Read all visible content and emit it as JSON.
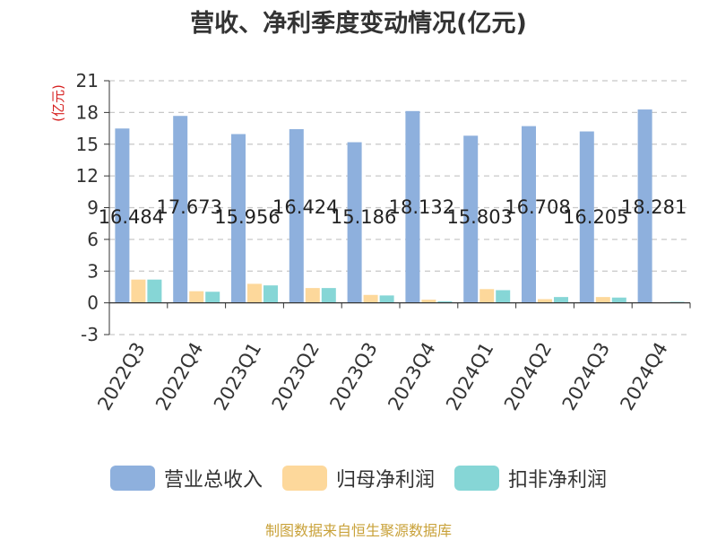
{
  "chart_data": {
    "type": "bar",
    "title": "营收、净利季度变动情况(亿元)",
    "ylabel": "(亿元)",
    "xlabel": "",
    "ylim": [
      -3,
      21
    ],
    "yticks": [
      -3,
      0,
      3,
      6,
      9,
      12,
      15,
      18,
      21
    ],
    "grid": true,
    "legend_position": "bottom",
    "categories": [
      "2022Q3",
      "2022Q4",
      "2023Q1",
      "2023Q2",
      "2023Q3",
      "2023Q4",
      "2024Q1",
      "2024Q2",
      "2024Q3",
      "2024Q4"
    ],
    "series": [
      {
        "name": "营业总收入",
        "color": "#8eb0dd",
        "values": [
          16.484,
          17.673,
          15.956,
          16.424,
          15.186,
          18.132,
          15.803,
          16.708,
          16.205,
          18.281
        ],
        "labels": [
          "16.484",
          "17.673",
          "15.956",
          "16.424",
          "15.186",
          "18.132",
          "15.803",
          "16.708",
          "16.205",
          "18.281"
        ]
      },
      {
        "name": "归母净利润",
        "color": "#fdd89b",
        "values": [
          2.2,
          1.1,
          1.8,
          1.4,
          0.75,
          0.3,
          1.3,
          0.35,
          0.55,
          0.05
        ]
      },
      {
        "name": "扣非净利润",
        "color": "#86d6d6",
        "values": [
          2.2,
          1.05,
          1.65,
          1.4,
          0.7,
          0.15,
          1.2,
          0.55,
          0.5,
          0.1
        ]
      }
    ]
  },
  "source": "制图数据来自恒生聚源数据库"
}
